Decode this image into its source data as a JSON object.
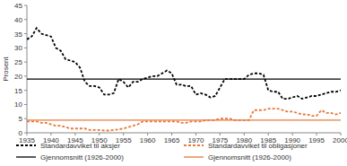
{
  "chart_data": {
    "type": "line",
    "y_label": "Prosent",
    "x": [
      1935,
      1936,
      1937,
      1938,
      1939,
      1940,
      1941,
      1942,
      1943,
      1944,
      1945,
      1946,
      1947,
      1948,
      1949,
      1950,
      1951,
      1952,
      1953,
      1954,
      1955,
      1956,
      1957,
      1958,
      1959,
      1960,
      1961,
      1962,
      1963,
      1964,
      1965,
      1966,
      1967,
      1968,
      1969,
      1970,
      1971,
      1972,
      1973,
      1974,
      1975,
      1976,
      1977,
      1978,
      1979,
      1980,
      1981,
      1982,
      1983,
      1984,
      1985,
      1986,
      1987,
      1988,
      1989,
      1990,
      1991,
      1992,
      1993,
      1994,
      1995,
      1996,
      1997,
      1998,
      1999,
      2000
    ],
    "series": [
      {
        "name": "Standardavviket til aksjer",
        "color": "#000000",
        "line_style": "dashed",
        "values": [
          33,
          34,
          37,
          35,
          34.5,
          34,
          30,
          29,
          26,
          25.5,
          25,
          23,
          18,
          16.5,
          16.5,
          16,
          13.5,
          13.5,
          14,
          19,
          18,
          16,
          18,
          18,
          19,
          19.5,
          20,
          20,
          21,
          22,
          21,
          17,
          17,
          16.5,
          16.5,
          13.5,
          14,
          13.5,
          12.5,
          13,
          16,
          19,
          19,
          19,
          19,
          19,
          20.5,
          21,
          21,
          20.5,
          15,
          14.5,
          14.5,
          12,
          12,
          12.5,
          13,
          12,
          12.5,
          13,
          13,
          13.5,
          14,
          14.5,
          14.5,
          15
        ]
      },
      {
        "name": "Standardavviket til obligasjoner",
        "color": "#e8793a",
        "line_style": "dashed",
        "values": [
          4,
          4,
          4,
          3.5,
          3.5,
          3,
          2.5,
          2.5,
          2,
          1.5,
          1.5,
          1.5,
          1.5,
          1,
          1,
          1,
          0.8,
          0.8,
          1,
          1.2,
          1.5,
          2,
          2.5,
          3,
          4,
          4,
          4,
          4,
          4,
          4,
          4,
          4,
          3.5,
          3.5,
          4,
          4,
          4,
          4.5,
          4.5,
          4.5,
          5,
          5,
          5,
          4.5,
          4.5,
          4.5,
          4.5,
          8,
          8,
          8,
          8.5,
          8.5,
          8.5,
          8,
          7.5,
          7.5,
          7,
          6.5,
          6.5,
          6,
          6,
          8,
          7,
          7,
          6.5,
          7
        ]
      },
      {
        "name": "Gjennomsnitt (1926-2000)",
        "color": "#000000",
        "line_style": "solid",
        "x": [
          1935,
          2000
        ],
        "values": [
          19,
          19
        ]
      },
      {
        "name": "Gjennomsnitt (1926-2000)",
        "color": "#e8793a",
        "line_style": "solid",
        "x": [
          1935,
          2000
        ],
        "values": [
          4.5,
          4.5
        ]
      }
    ],
    "xlim": [
      1935,
      2000
    ],
    "xticks": [
      1935,
      1940,
      1945,
      1950,
      1955,
      1960,
      1965,
      1970,
      1975,
      1980,
      1985,
      1990,
      1995,
      2000
    ],
    "ylim": [
      0,
      45
    ],
    "yticks": [
      0,
      5,
      10,
      15,
      20,
      25,
      30,
      35,
      40,
      45
    ],
    "grid": false,
    "legend": "bottom"
  }
}
